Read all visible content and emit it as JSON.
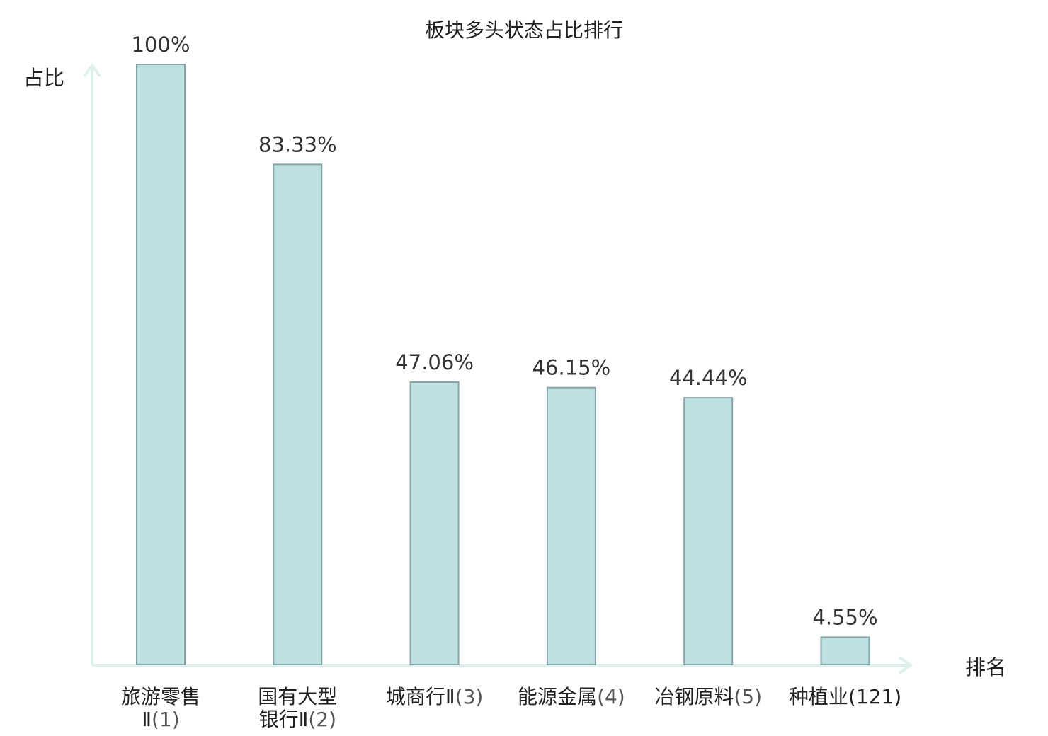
{
  "chart_data": {
    "type": "bar",
    "title": "板块多头状态占比排行",
    "ylabel": "占比",
    "xlabel": "排名",
    "ylim": [
      0,
      100
    ],
    "categories": [
      {
        "name_lines": [
          "旅游零售",
          "Ⅱ"
        ],
        "rank": "(1)",
        "highlight": false
      },
      {
        "name_lines": [
          "国有大型",
          "银行Ⅱ"
        ],
        "rank": "(2)",
        "highlight": false
      },
      {
        "name_lines": [
          "城商行Ⅱ"
        ],
        "rank": "(3)",
        "highlight": false
      },
      {
        "name_lines": [
          "能源金属"
        ],
        "rank": "(4)",
        "highlight": false
      },
      {
        "name_lines": [
          "冶钢原料"
        ],
        "rank": "(5)",
        "highlight": false
      },
      {
        "name_lines": [
          "种植业"
        ],
        "rank": "(121)",
        "highlight": true
      }
    ],
    "values": [
      100,
      83.33,
      47.06,
      46.15,
      44.44,
      4.55
    ],
    "value_labels": [
      "100%",
      "83.33%",
      "47.06%",
      "46.15%",
      "44.44%",
      "4.55%"
    ],
    "grid": false,
    "legend": "none"
  },
  "colors": {
    "bar_fill": "#bde1e3",
    "bar_stroke": "#86a5a8",
    "axis": "#dff1ee",
    "highlight_text": "#e02020",
    "text": "#222222"
  }
}
